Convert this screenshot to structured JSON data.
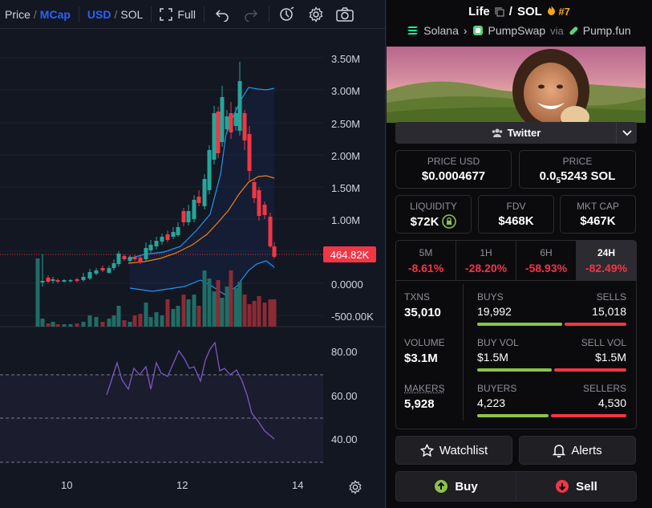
{
  "toolbar": {
    "price_label": "Price",
    "mcap_label": "MCap",
    "usd_label": "USD",
    "sol_label": "SOL",
    "full_label": "Full"
  },
  "y_axis_main": [
    "3.50M",
    "3.00M",
    "2.50M",
    "2.00M",
    "1.50M",
    "1.00M",
    "0.0000",
    "-500.00K"
  ],
  "current_price_tag": "464.82K",
  "y_axis_rsi": [
    "80.00",
    "60.00",
    "40.00"
  ],
  "x_axis": [
    "10",
    "12",
    "14"
  ],
  "token": {
    "name": "Life",
    "quote": "SOL",
    "rank": "#7",
    "chain": "Solana",
    "dex": "PumpSwap",
    "via_label": "via",
    "launchpad": "Pump.fun",
    "twitter_label": "Twitter"
  },
  "metrics": {
    "price_usd_label": "PRICE USD",
    "price_usd": "$0.0004677",
    "price_label": "PRICE",
    "price_sol_prefix": "0.0",
    "price_sol_sub": "5",
    "price_sol_rest": "5243 SOL",
    "liquidity_label": "LIQUIDITY",
    "liquidity": "$72K",
    "fdv_label": "FDV",
    "fdv": "$468K",
    "mktcap_label": "MKT CAP",
    "mktcap": "$467K"
  },
  "periods": [
    {
      "label": "5M",
      "value": "-8.61%"
    },
    {
      "label": "1H",
      "value": "-28.20%"
    },
    {
      "label": "6H",
      "value": "-58.93%"
    },
    {
      "label": "24H",
      "value": "-82.49%"
    }
  ],
  "stats": {
    "txns_label": "TXNS",
    "txns": "35,010",
    "buys_label": "BUYS",
    "buys": "19,992",
    "sells_label": "SELLS",
    "sells": "15,018",
    "buys_share": 0.57,
    "volume_label": "VOLUME",
    "volume": "$3.1M",
    "buyvol_label": "BUY VOL",
    "buyvol": "$1.5M",
    "sellvol_label": "SELL VOL",
    "sellvol": "$1.5M",
    "buyvol_share": 0.5,
    "makers_label": "MAKERS",
    "makers": "5,928",
    "buyers_label": "BUYERS",
    "buyers": "4,223",
    "sellers_label": "SELLERS",
    "sellers": "4,530",
    "buyers_share": 0.48
  },
  "actions": {
    "watchlist": "Watchlist",
    "alerts": "Alerts",
    "buy": "Buy",
    "sell": "Sell"
  },
  "colors": {
    "up": "#26a69a",
    "down": "#f23645",
    "accent": "#2962ff",
    "rsi": "#7e57c2"
  }
}
